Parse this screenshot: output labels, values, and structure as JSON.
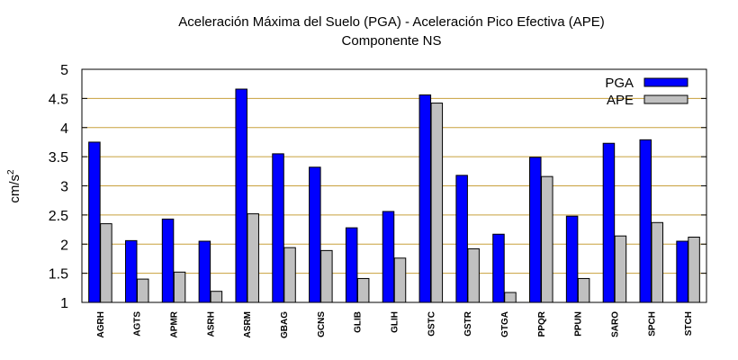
{
  "chart_data": {
    "type": "bar",
    "title": "Aceleración Máxima del Suelo (PGA) -  Aceleración Pico Efectiva (APE)",
    "subtitle": "Componente NS",
    "ylabel_base": "cm/s",
    "ylabel_sup": "2",
    "ylim": [
      1,
      5
    ],
    "yticks": [
      "1",
      "1.5",
      "2",
      "2.5",
      "3",
      "3.5",
      "4",
      "4.5",
      "5"
    ],
    "grid": true,
    "legend_position": "top-right",
    "categories": [
      "AGRH",
      "AGTS",
      "APMR",
      "ASRH",
      "ASRM",
      "GBAG",
      "GCNS",
      "GLIB",
      "GLIH",
      "GSTC",
      "GSTR",
      "GTGA",
      "PPQR",
      "PPUN",
      "SARO",
      "SPCH",
      "STCH"
    ],
    "series": [
      {
        "name": "PGA",
        "color": "#0000ff",
        "values": [
          3.75,
          2.06,
          2.43,
          2.05,
          4.66,
          3.55,
          3.32,
          2.28,
          2.56,
          4.56,
          3.18,
          2.17,
          3.49,
          2.48,
          3.73,
          3.79,
          2.05
        ]
      },
      {
        "name": "APE",
        "color": "#c0c0c0",
        "values": [
          2.35,
          1.4,
          1.52,
          1.19,
          2.52,
          1.94,
          1.89,
          1.41,
          1.76,
          4.42,
          1.92,
          1.17,
          3.16,
          1.41,
          2.14,
          2.37,
          2.12
        ]
      }
    ],
    "colors": {
      "grid": "#c8a03c",
      "axis": "#000000"
    }
  }
}
